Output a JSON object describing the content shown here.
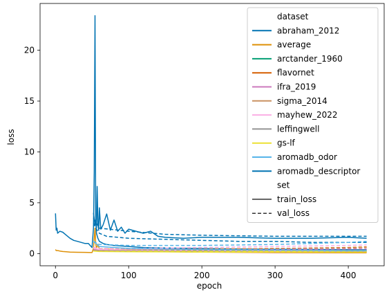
{
  "chart_data": {
    "type": "line",
    "xlabel": "epoch",
    "ylabel": "loss",
    "xlim": [
      -21,
      449
    ],
    "ylim": [
      -1.2,
      24.6
    ],
    "x_ticks": [
      0,
      100,
      200,
      300,
      400
    ],
    "y_ticks": [
      0,
      5,
      10,
      15,
      20
    ],
    "grid": false,
    "legend": {
      "placement": "top-right",
      "hue_title": "dataset",
      "style_title": "set",
      "styles": [
        {
          "name": "train_loss",
          "dash": "solid"
        },
        {
          "name": "val_loss",
          "dash": "dashed"
        }
      ]
    },
    "series": [
      {
        "name": "abraham_2012",
        "color": "#0173b2",
        "train": {
          "x": [
            0,
            1,
            2,
            3,
            6,
            10,
            15,
            20,
            25,
            30,
            35,
            40,
            45,
            50,
            52,
            53,
            54,
            55,
            56,
            58,
            60,
            65,
            70,
            80,
            90,
            100,
            120,
            150,
            200,
            250,
            300,
            350,
            400,
            425
          ],
          "y": [
            3.95,
            2.3,
            2.5,
            2.0,
            2.2,
            2.1,
            1.8,
            1.5,
            1.3,
            1.2,
            1.1,
            1.0,
            1.0,
            0.6,
            2.5,
            8.0,
            23.4,
            3.5,
            2.0,
            1.5,
            1.2,
            1.0,
            0.9,
            0.8,
            0.75,
            0.7,
            0.6,
            0.55,
            0.5,
            0.45,
            0.42,
            0.4,
            0.38,
            0.37
          ]
        },
        "val": {
          "x": [
            52,
            55,
            60,
            70,
            100,
            150,
            200,
            250,
            300,
            350,
            400,
            425
          ],
          "y": [
            3.0,
            2.5,
            2.0,
            1.7,
            1.5,
            1.4,
            1.3,
            1.2,
            1.2,
            1.1,
            1.1,
            1.1
          ]
        }
      },
      {
        "name": "average",
        "color": "#de8f05",
        "train": {
          "x": [
            0,
            1,
            3,
            6,
            10,
            15,
            20,
            30,
            40,
            50,
            52,
            54,
            55,
            56,
            58,
            60,
            65,
            70,
            80,
            100,
            150,
            200,
            250,
            300,
            350,
            400,
            425
          ],
          "y": [
            0.4,
            0.3,
            0.3,
            0.25,
            0.2,
            0.18,
            0.15,
            0.13,
            0.12,
            0.1,
            0.5,
            2.5,
            1.0,
            0.5,
            0.9,
            0.45,
            0.4,
            0.45,
            0.4,
            0.38,
            0.35,
            0.33,
            0.32,
            0.31,
            0.3,
            0.3,
            0.3
          ]
        },
        "val": {
          "x": [
            52,
            60,
            100,
            200,
            300,
            400,
            425
          ],
          "y": [
            0.55,
            0.5,
            0.45,
            0.42,
            0.5,
            0.55,
            0.6
          ]
        }
      },
      {
        "name": "arctander_1960",
        "color": "#029e73",
        "train": {
          "x": [
            52,
            60,
            100,
            200,
            300,
            400,
            425
          ],
          "y": [
            0.5,
            0.35,
            0.3,
            0.25,
            0.22,
            0.2,
            0.2
          ]
        },
        "val": {
          "x": [
            52,
            60,
            100,
            200,
            300,
            400,
            425
          ],
          "y": [
            0.5,
            0.4,
            0.35,
            0.3,
            0.3,
            0.3,
            0.3
          ]
        }
      },
      {
        "name": "flavornet",
        "color": "#d55e00",
        "train": {
          "x": [
            52,
            60,
            100,
            200,
            300,
            400,
            425
          ],
          "y": [
            0.6,
            0.3,
            0.2,
            0.15,
            0.1,
            0.08,
            0.08
          ]
        },
        "val": {
          "x": [
            52,
            60,
            100,
            200,
            300,
            400,
            425
          ],
          "y": [
            0.6,
            0.4,
            0.4,
            0.45,
            0.5,
            0.6,
            0.65
          ]
        }
      },
      {
        "name": "ifra_2019",
        "color": "#cc78bc",
        "train": {
          "x": [
            52,
            60,
            100,
            200,
            300,
            400,
            425
          ],
          "y": [
            0.4,
            0.3,
            0.25,
            0.2,
            0.18,
            0.15,
            0.15
          ]
        },
        "val": {
          "x": [
            52,
            60,
            100,
            200,
            300,
            400,
            425
          ],
          "y": [
            0.4,
            0.35,
            0.35,
            0.35,
            0.4,
            0.45,
            0.45
          ]
        }
      },
      {
        "name": "sigma_2014",
        "color": "#ca9161",
        "train": {
          "x": [
            52,
            60,
            100,
            200,
            300,
            400,
            425
          ],
          "y": [
            0.5,
            0.35,
            0.3,
            0.25,
            0.2,
            0.18,
            0.18
          ]
        },
        "val": {
          "x": [
            52,
            60,
            100,
            200,
            300,
            400,
            425
          ],
          "y": [
            0.5,
            0.4,
            0.4,
            0.45,
            0.5,
            0.55,
            0.6
          ]
        }
      },
      {
        "name": "mayhew_2022",
        "color": "#fbafe4",
        "train": {
          "x": [
            52,
            60,
            100,
            200,
            300,
            400,
            425
          ],
          "y": [
            0.5,
            0.4,
            0.35,
            0.3,
            0.25,
            0.2,
            0.2
          ]
        },
        "val": {
          "x": [
            52,
            60,
            100,
            200,
            300,
            400,
            425
          ],
          "y": [
            0.6,
            0.5,
            0.5,
            0.6,
            0.7,
            0.8,
            0.85
          ]
        }
      },
      {
        "name": "leffingwell",
        "color": "#949494",
        "train": {
          "x": [
            52,
            60,
            100,
            200,
            300,
            400,
            425
          ],
          "y": [
            0.3,
            0.25,
            0.22,
            0.2,
            0.18,
            0.16,
            0.16
          ]
        },
        "val": {
          "x": [
            52,
            60,
            100,
            200,
            300,
            400,
            425
          ],
          "y": [
            0.3,
            0.28,
            0.28,
            0.3,
            0.3,
            0.3,
            0.3
          ]
        }
      },
      {
        "name": "gs-lf",
        "color": "#ece133",
        "train": {
          "x": [
            52,
            60,
            100,
            200,
            300,
            400,
            425
          ],
          "y": [
            0.25,
            0.2,
            0.18,
            0.15,
            0.14,
            0.12,
            0.12
          ]
        },
        "val": {
          "x": [
            52,
            60,
            100,
            200,
            300,
            400,
            425
          ],
          "y": [
            0.25,
            0.22,
            0.22,
            0.22,
            0.23,
            0.24,
            0.24
          ]
        }
      },
      {
        "name": "aromadb_odor",
        "color": "#56b4e9",
        "train": {
          "x": [
            52,
            60,
            100,
            200,
            300,
            400,
            425
          ],
          "y": [
            1.2,
            0.7,
            0.5,
            0.4,
            0.35,
            0.3,
            0.3
          ]
        },
        "val": {
          "x": [
            52,
            60,
            100,
            200,
            300,
            400,
            425
          ],
          "y": [
            1.2,
            0.9,
            0.8,
            0.8,
            0.9,
            1.1,
            1.2
          ]
        }
      },
      {
        "name": "aromadb_descriptor",
        "color": "#0173b2",
        "train": {
          "x": [
            52,
            54,
            55,
            56,
            57,
            58,
            59,
            60,
            62,
            65,
            70,
            75,
            80,
            85,
            90,
            95,
            100,
            110,
            120,
            130,
            140,
            150,
            175,
            200,
            250,
            300,
            350,
            400,
            425
          ],
          "y": [
            4.0,
            2.8,
            3.2,
            2.5,
            6.6,
            3.0,
            2.3,
            4.5,
            2.4,
            2.8,
            3.9,
            2.3,
            3.3,
            2.2,
            2.6,
            2.0,
            2.4,
            2.2,
            2.0,
            2.2,
            1.7,
            1.6,
            1.5,
            1.6,
            1.6,
            1.5,
            1.5,
            1.6,
            1.5
          ]
        },
        "val": {
          "x": [
            52,
            60,
            100,
            150,
            200,
            300,
            400,
            425
          ],
          "y": [
            3.5,
            2.5,
            2.2,
            1.9,
            1.8,
            1.7,
            1.7,
            1.7
          ]
        }
      }
    ]
  }
}
